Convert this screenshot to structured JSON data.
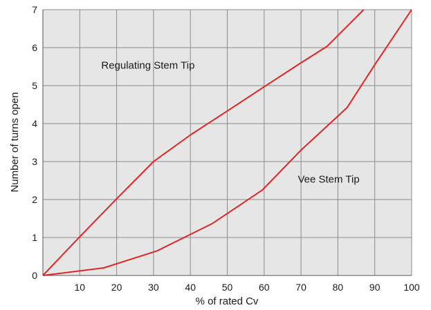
{
  "chart_data": {
    "type": "line",
    "title": "",
    "xlabel": "% of rated Cv",
    "ylabel": "Number of turns open",
    "xlim": [
      0,
      100
    ],
    "ylim": [
      0,
      7
    ],
    "x_ticks": [
      10,
      20,
      30,
      40,
      50,
      60,
      70,
      80,
      90,
      100
    ],
    "y_ticks": [
      0,
      1,
      2,
      3,
      4,
      5,
      6,
      7
    ],
    "grid": true,
    "legend": "none",
    "colors": {
      "line": "#e02424",
      "grid": "#8a8a8a",
      "background": "#e6e6e6"
    },
    "series": [
      {
        "name": "Regulating Stem Tip",
        "x": [
          0,
          10,
          20,
          30,
          40,
          50,
          60,
          70,
          77,
          87
        ],
        "y": [
          0,
          1.02,
          2.02,
          3.0,
          3.7,
          4.33,
          4.97,
          5.6,
          6.03,
          7.0
        ]
      },
      {
        "name": "Vee Stem Tip",
        "x": [
          0,
          10,
          16.5,
          31,
          46,
          59.5,
          70,
          82.5,
          90,
          100
        ],
        "y": [
          0,
          0.12,
          0.2,
          0.65,
          1.37,
          2.25,
          3.3,
          4.42,
          5.55,
          7.0
        ]
      }
    ],
    "annotations": [
      {
        "text": "Regulating Stem Tip",
        "x": 28.5,
        "y": 5.45
      },
      {
        "text": "Vee Stem Tip",
        "x": 77.5,
        "y": 2.45
      }
    ]
  }
}
